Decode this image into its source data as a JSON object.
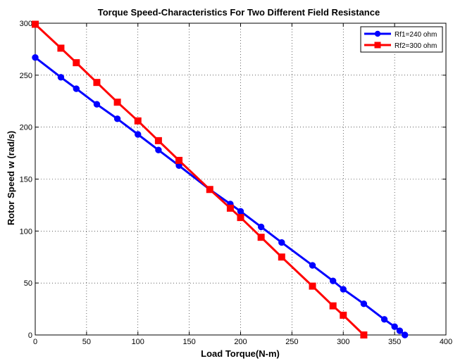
{
  "chart_data": {
    "type": "line",
    "title": "Torque Speed-Characteristics For Two Different Field Resistance",
    "xlabel": "Load Torque(N-m)",
    "ylabel": "Rotor Speed w (rad/s)",
    "xlim": [
      0,
      400
    ],
    "ylim": [
      0,
      300
    ],
    "xticks": [
      0,
      50,
      100,
      150,
      200,
      250,
      300,
      350,
      400
    ],
    "yticks": [
      0,
      50,
      100,
      150,
      200,
      250,
      300
    ],
    "grid": true,
    "legend_position": "top-right",
    "series": [
      {
        "name": "Rf1=240 ohm",
        "color": "#0000ff",
        "marker": "circle",
        "x": [
          0,
          25,
          40,
          60,
          80,
          100,
          120,
          140,
          170,
          190,
          200,
          220,
          240,
          270,
          290,
          300,
          320,
          340,
          350,
          355,
          360
        ],
        "y": [
          267,
          248,
          237,
          222,
          208,
          193,
          178,
          163,
          140,
          126,
          119,
          104,
          89,
          67,
          52,
          44,
          30,
          15,
          8,
          4,
          0
        ]
      },
      {
        "name": "Rf2=300 ohm",
        "color": "#ff0000",
        "marker": "square",
        "x": [
          0,
          25,
          40,
          60,
          80,
          100,
          120,
          140,
          170,
          190,
          200,
          220,
          240,
          270,
          290,
          300,
          320
        ],
        "y": [
          299,
          276,
          262,
          243,
          224,
          206,
          187,
          168,
          140,
          122,
          113,
          94,
          75,
          47,
          28,
          19,
          0
        ]
      }
    ]
  }
}
